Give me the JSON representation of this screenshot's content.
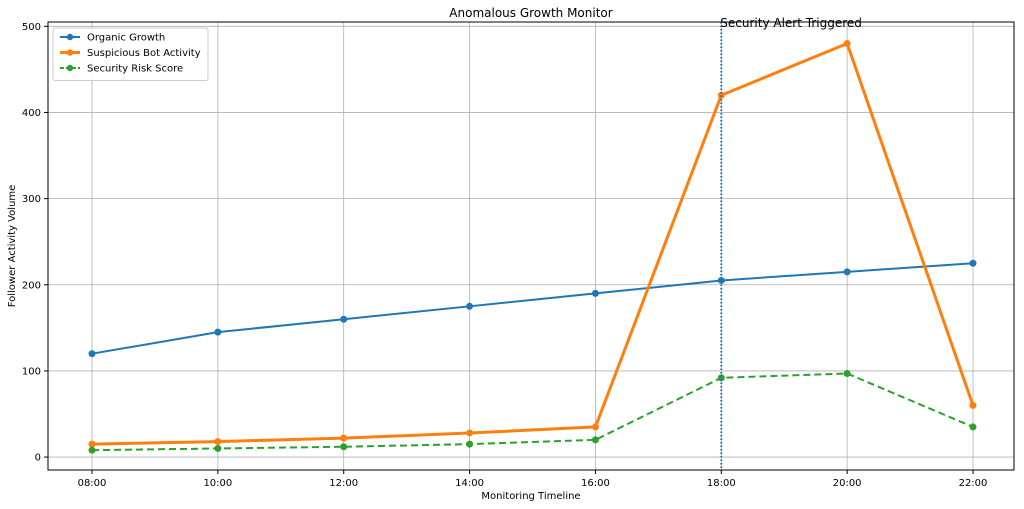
{
  "chart_data": {
    "type": "line",
    "title": "Anomalous Growth Monitor",
    "xlabel": "Monitoring Timeline",
    "ylabel": "Follower Activity Volume",
    "categories": [
      "08:00",
      "10:00",
      "12:00",
      "14:00",
      "16:00",
      "18:00",
      "20:00",
      "22:00"
    ],
    "ylim": [
      -15,
      505
    ],
    "yticks": [
      0,
      100,
      200,
      300,
      400,
      500
    ],
    "grid": true,
    "legend_position": "top-left",
    "series": [
      {
        "name": "Organic Growth",
        "color": "#1f77b4",
        "style": "solid",
        "width": 2,
        "values": [
          120,
          145,
          160,
          175,
          190,
          205,
          215,
          225
        ]
      },
      {
        "name": "Suspicious Bot Activity",
        "color": "#ff7f0e",
        "style": "solid",
        "width": 3,
        "values": [
          15,
          18,
          22,
          28,
          35,
          420,
          480,
          60
        ]
      },
      {
        "name": "Security Risk Score",
        "color": "#2ca02c",
        "style": "dashed",
        "width": 2,
        "values": [
          8,
          10,
          12,
          15,
          20,
          92,
          97,
          35
        ]
      }
    ],
    "annotations": [
      {
        "text": "Security Alert Triggered",
        "x": "18:00",
        "line_style": "dotted",
        "color": "#1f77b4"
      }
    ]
  }
}
